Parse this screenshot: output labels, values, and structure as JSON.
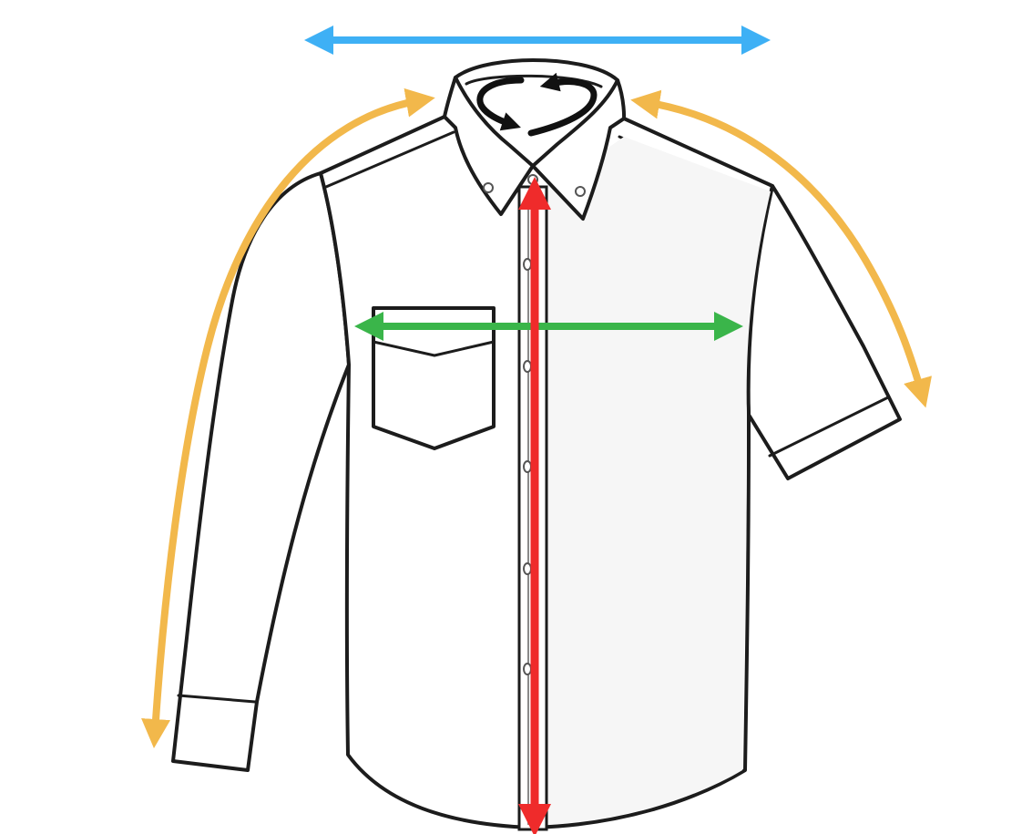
{
  "measurements": [
    {
      "id": "shoulder-width",
      "color": "#3eb0f5",
      "icon": "double-headed-arrow"
    },
    {
      "id": "collar-circumference",
      "color": "#111111",
      "icon": "circular-arrows"
    },
    {
      "id": "left-sleeve-length",
      "color": "#f2b84b",
      "icon": "curved-arrow"
    },
    {
      "id": "right-sleeve-length",
      "color": "#f2b84b",
      "icon": "curved-arrow"
    },
    {
      "id": "chest-width",
      "color": "#3ab54a",
      "icon": "double-headed-arrow"
    },
    {
      "id": "body-length",
      "color": "#ef2b2b",
      "icon": "double-headed-arrow"
    }
  ],
  "garment": {
    "type": "button-down shirt",
    "left_sleeve": "long",
    "right_sleeve": "short",
    "pocket": "chest pocket"
  }
}
